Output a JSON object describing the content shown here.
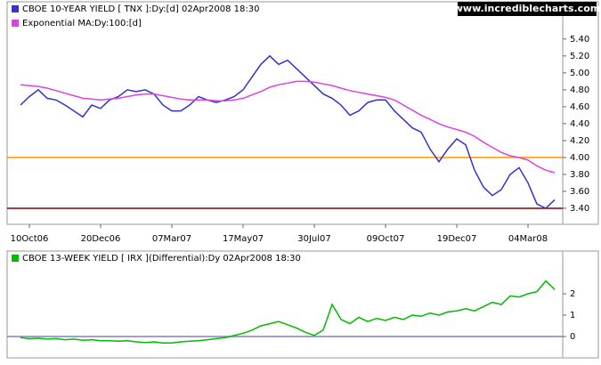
{
  "source": "www.incrediblecharts.com",
  "chart_data": [
    {
      "type": "line",
      "categories": [
        null,
        "10Oct06",
        null,
        null,
        null,
        null,
        null,
        null,
        null,
        "20Dec06",
        null,
        null,
        null,
        null,
        null,
        null,
        null,
        "07Mar07",
        null,
        null,
        null,
        null,
        null,
        null,
        null,
        "17May07",
        null,
        null,
        null,
        null,
        null,
        null,
        null,
        "30Jul07",
        null,
        null,
        null,
        null,
        null,
        null,
        null,
        "09Oct07",
        null,
        null,
        null,
        null,
        null,
        null,
        null,
        "19Dec07",
        null,
        null,
        null,
        null,
        null,
        null,
        null,
        "04Mar08",
        null,
        null,
        null
      ],
      "series": [
        {
          "name": "CBOE 10-YEAR YIELD [ TNX ]:Dy:[d]  02Apr2008 18:30",
          "color": "#3333cc",
          "values": [
            4.62,
            4.72,
            4.8,
            4.7,
            4.68,
            4.62,
            4.55,
            4.48,
            4.62,
            4.58,
            4.68,
            4.72,
            4.8,
            4.78,
            4.8,
            4.75,
            4.62,
            4.55,
            4.55,
            4.62,
            4.72,
            4.68,
            4.65,
            4.68,
            4.72,
            4.8,
            4.95,
            5.1,
            5.2,
            5.1,
            5.15,
            5.05,
            4.95,
            4.85,
            4.75,
            4.7,
            4.62,
            4.5,
            4.55,
            4.65,
            4.68,
            4.68,
            4.55,
            4.45,
            4.35,
            4.3,
            4.1,
            3.95,
            4.1,
            4.22,
            4.15,
            3.85,
            3.65,
            3.55,
            3.62,
            3.8,
            3.88,
            3.7,
            3.45,
            3.4,
            3.5
          ]
        },
        {
          "name": "Exponential MA:Dy:100:[d]",
          "color": "#e040e0",
          "values": [
            4.86,
            4.85,
            4.84,
            4.82,
            4.79,
            4.76,
            4.73,
            4.7,
            4.69,
            4.68,
            4.69,
            4.7,
            4.72,
            4.74,
            4.75,
            4.75,
            4.73,
            4.71,
            4.69,
            4.68,
            4.68,
            4.68,
            4.67,
            4.67,
            4.68,
            4.7,
            4.74,
            4.78,
            4.83,
            4.86,
            4.88,
            4.9,
            4.9,
            4.89,
            4.87,
            4.85,
            4.82,
            4.79,
            4.77,
            4.75,
            4.73,
            4.71,
            4.68,
            4.62,
            4.56,
            4.5,
            4.45,
            4.4,
            4.36,
            4.33,
            4.3,
            4.25,
            4.18,
            4.12,
            4.06,
            4.02,
            4.0,
            3.97,
            3.9,
            3.85,
            3.82
          ]
        }
      ],
      "reference_lines": [
        {
          "value": 4.0,
          "color": "#ff9900"
        },
        {
          "value": 3.4,
          "color": "#800000"
        }
      ],
      "ylim": [
        3.21,
        5.84
      ],
      "yticks": [
        {
          "value": 3.4,
          "label": "3.40"
        },
        {
          "value": 3.6,
          "label": "3.60"
        },
        {
          "value": 3.8,
          "label": "3.80"
        },
        {
          "value": 4.0,
          "label": "4.00"
        },
        {
          "value": 4.2,
          "label": "4.20"
        },
        {
          "value": 4.4,
          "label": "4.40"
        },
        {
          "value": 4.6,
          "label": "4.60"
        },
        {
          "value": 4.8,
          "label": "4.80"
        },
        {
          "value": 5.0,
          "label": "5.00"
        },
        {
          "value": 5.2,
          "label": "5.20"
        },
        {
          "value": 5.4,
          "label": "5.40"
        }
      ]
    },
    {
      "type": "line",
      "series": [
        {
          "name": "CBOE 13-WEEK YIELD [ IRX ](Differential):Dy  02Apr2008 18:30",
          "color": "#00bb00",
          "values": [
            -0.05,
            -0.1,
            -0.08,
            -0.12,
            -0.1,
            -0.15,
            -0.12,
            -0.18,
            -0.15,
            -0.2,
            -0.2,
            -0.22,
            -0.2,
            -0.25,
            -0.28,
            -0.25,
            -0.3,
            -0.3,
            -0.25,
            -0.22,
            -0.2,
            -0.15,
            -0.1,
            -0.05,
            0.05,
            0.15,
            0.3,
            0.5,
            0.6,
            0.7,
            0.55,
            0.4,
            0.2,
            0.05,
            0.3,
            1.5,
            0.8,
            0.6,
            0.9,
            0.7,
            0.85,
            0.75,
            0.9,
            0.8,
            1.0,
            0.95,
            1.1,
            1.0,
            1.15,
            1.2,
            1.3,
            1.2,
            1.4,
            1.6,
            1.5,
            1.9,
            1.85,
            2.0,
            2.1,
            2.6,
            2.2
          ]
        }
      ],
      "reference_lines": [
        {
          "value": 0,
          "color": "#8080c0"
        }
      ],
      "ylim": [
        -1,
        4
      ],
      "yticks": [
        0,
        1,
        2
      ]
    }
  ]
}
